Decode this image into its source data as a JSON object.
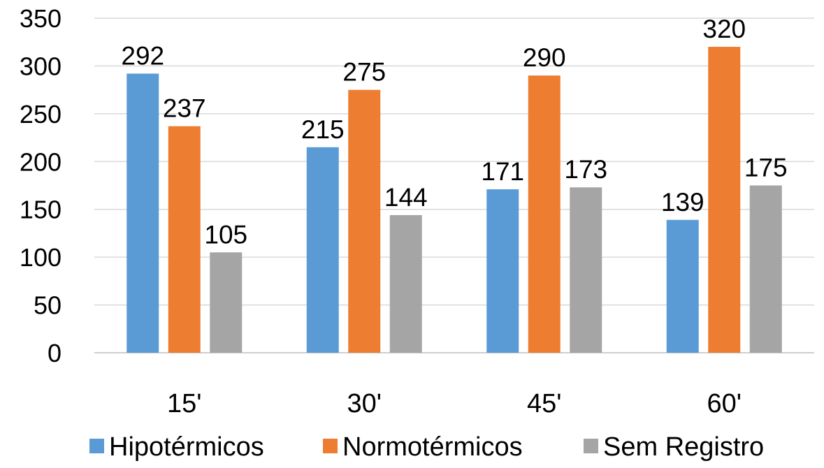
{
  "chart_data": {
    "type": "bar",
    "categories": [
      "15'",
      "30'",
      "45'",
      "60'"
    ],
    "series": [
      {
        "name": "Hipotérmicos",
        "values": [
          292,
          215,
          171,
          139
        ],
        "color": "#5b9bd5"
      },
      {
        "name": "Normotérmicos",
        "values": [
          237,
          275,
          290,
          320
        ],
        "color": "#ed7d31"
      },
      {
        "name": "Sem Registro",
        "values": [
          105,
          144,
          173,
          175
        ],
        "color": "#a5a5a5"
      }
    ],
    "ylim": [
      0,
      350
    ],
    "yticks": [
      "0",
      "50",
      "100",
      "150",
      "200",
      "250",
      "300",
      "350"
    ],
    "grid": true,
    "gridline_color": "#d9d9d9",
    "legend_position": "bottom",
    "data_labels": true,
    "title": "",
    "xlabel": "",
    "ylabel": ""
  }
}
